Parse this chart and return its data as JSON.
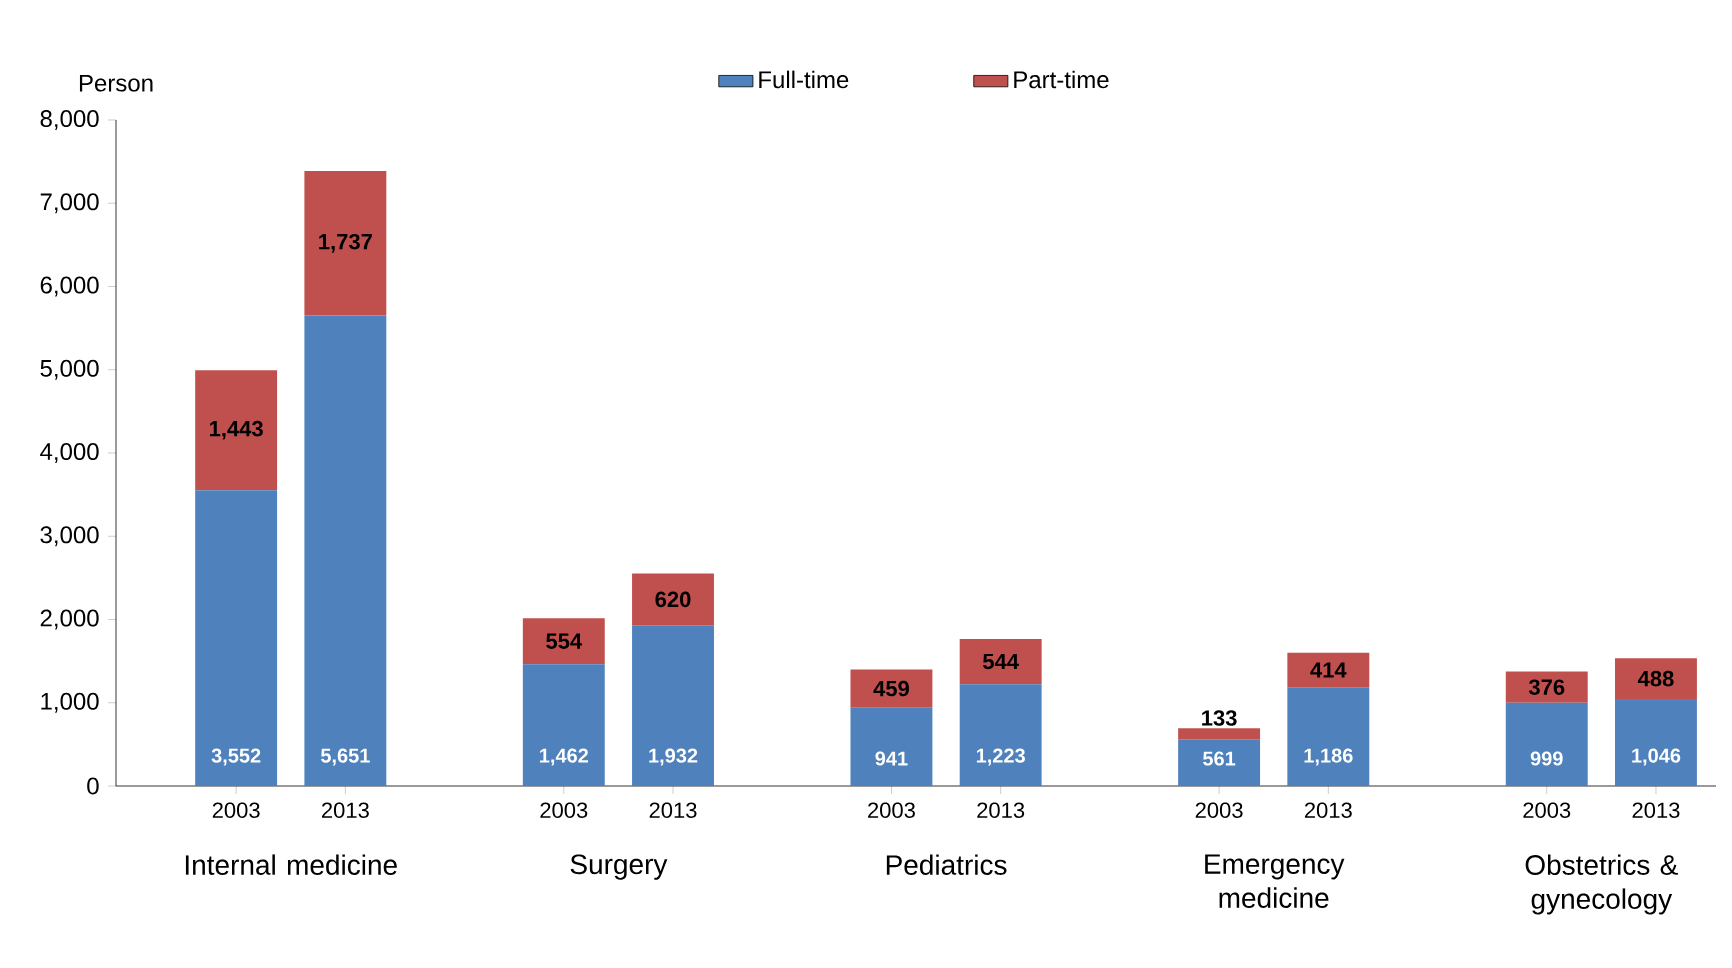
{
  "chart_data": {
    "type": "bar",
    "stacked": true,
    "ylabel": "Person",
    "categories": [
      "2003",
      "2013",
      null,
      "2003",
      "2013",
      null,
      "2003",
      "2013",
      null,
      "2003",
      "2013",
      null,
      "2003",
      "2013"
    ],
    "series": [
      {
        "name": "Full-time",
        "color": "#4f81bd",
        "values": [
          3552,
          5651,
          null,
          1462,
          1932,
          null,
          941,
          1223,
          null,
          561,
          1186,
          null,
          999,
          1046
        ],
        "value_labels": [
          "3,552",
          "5,651",
          null,
          "1,462",
          "1,932",
          null,
          "941",
          "1,223",
          null,
          "561",
          "1,186",
          null,
          "999",
          "1,046"
        ]
      },
      {
        "name": "Part-time",
        "color": "#c0504d",
        "values": [
          1443,
          1737,
          null,
          554,
          620,
          null,
          459,
          544,
          null,
          133,
          414,
          null,
          376,
          488
        ],
        "value_labels": [
          "1,443",
          "1,737",
          null,
          "554",
          "620",
          null,
          "459",
          "544",
          null,
          "133",
          "414",
          null,
          "376",
          "488"
        ]
      }
    ],
    "ylim": [
      0,
      8000
    ],
    "yticks": [
      0,
      {
        "value": 1000,
        "label": "1,000"
      },
      {
        "value": 2000,
        "label": "2,000"
      },
      {
        "value": 3000,
        "label": "3,000"
      },
      {
        "value": 4000,
        "label": "4,000"
      },
      {
        "value": 5000,
        "label": "5,000"
      },
      {
        "value": 6000,
        "label": "6,000"
      },
      {
        "value": 7000,
        "label": "7,000"
      },
      {
        "value": 8000,
        "label": "8,000"
      }
    ],
    "legend": "top",
    "grid": false,
    "annotations": [
      "Internal medicine",
      "Surgery",
      "Pediatrics",
      "Emergency medicine",
      "Obstetrics & gynecology"
    ]
  }
}
